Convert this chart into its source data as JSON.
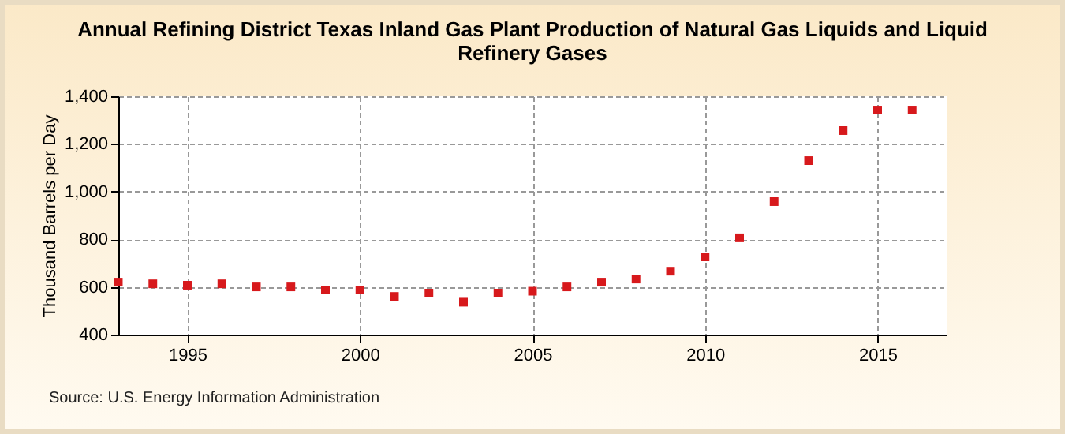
{
  "chart_data": {
    "type": "scatter",
    "title": "Annual Refining District Texas Inland Gas Plant Production of Natural Gas Liquids and Liquid Refinery Gases",
    "ylabel": "Thousand Barrels per Day",
    "annotations": [
      "Source: U.S. Energy Information Administration"
    ],
    "x": [
      1993,
      1994,
      1995,
      1996,
      1997,
      1998,
      1999,
      2000,
      2001,
      2002,
      2003,
      2004,
      2005,
      2006,
      2007,
      2008,
      2009,
      2010,
      2011,
      2012,
      2013,
      2014,
      2015,
      2016
    ],
    "series": [
      {
        "color": "#d7191c",
        "values": [
          620,
          613,
          607,
          613,
          600,
          600,
          587,
          587,
          560,
          574,
          536,
          574,
          582,
          600,
          620,
          633,
          666,
          726,
          806,
          958,
          1130,
          1256,
          1342,
          1342
        ]
      }
    ],
    "xlim": [
      1993,
      2017
    ],
    "xticks": [
      1995,
      2000,
      2005,
      2010,
      2015
    ],
    "ylim": [
      400,
      1400
    ],
    "yticks": [
      {
        "value": 400,
        "label": "400"
      },
      {
        "value": 600,
        "label": "600"
      },
      {
        "value": 800,
        "label": "800"
      },
      {
        "value": 1000,
        "label": "1,000"
      },
      {
        "value": 1200,
        "label": "1,200"
      },
      {
        "value": 1400,
        "label": "1,400"
      }
    ],
    "grid": true,
    "marker": "square",
    "legend": false
  }
}
